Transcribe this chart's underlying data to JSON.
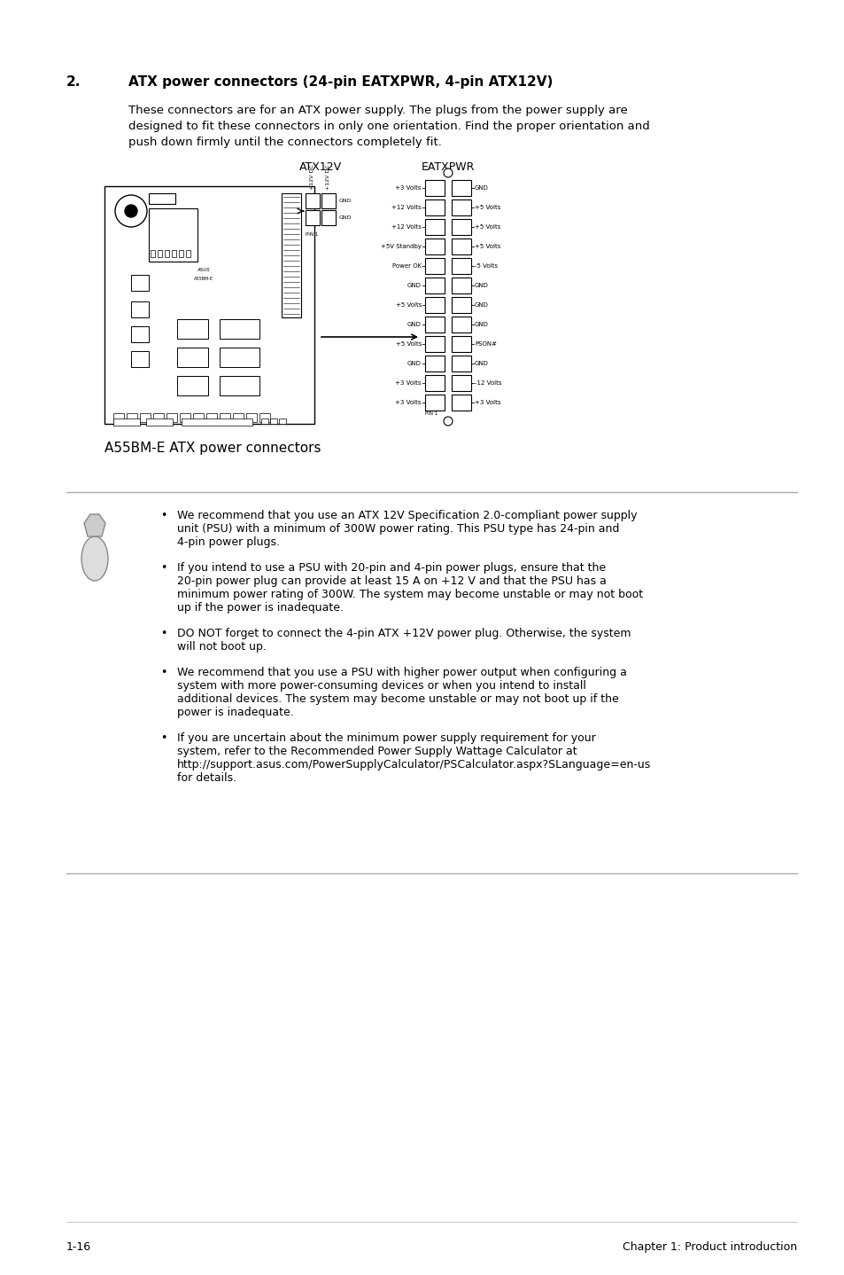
{
  "bg_color": "#ffffff",
  "heading_num": "2.",
  "heading_text": "ATX power connectors (24-pin EATXPWR, 4-pin ATX12V)",
  "body_line1": "These connectors are for an ATX power supply. The plugs from the power supply are",
  "body_line2": "designed to fit these connectors in only one orientation. Find the proper orientation and",
  "body_line3": "push down firmly until the connectors completely fit.",
  "diagram_caption": "A55BM-E ATX power connectors",
  "atx12v_label": "ATX12V",
  "eatxpwr_label": "EATXPWR",
  "eatxpwr_left_pins": [
    "+3 Volts",
    "+12 Volts",
    "+12 Volts",
    "+5V Standby",
    "Power OK",
    "GND",
    "+5 Volts",
    "GND",
    "+5 Volts",
    "GND",
    "+3 Volts",
    "+3 Volts"
  ],
  "eatxpwr_right_pins": [
    "GND",
    "+5 Volts",
    "+5 Volts",
    "+5 Volts",
    "-5 Volts",
    "GND",
    "GND",
    "GND",
    "PSON#",
    "GND",
    "-12 Volts",
    "+3 Volts"
  ],
  "note_bullets": [
    "We recommend that you use an ATX 12V Specification 2.0-compliant power supply unit (PSU) with a minimum of 300W power rating. This PSU type has 24-pin and 4-pin power plugs.",
    "If you intend to use a PSU with 20-pin and 4-pin power plugs, ensure that the 20-pin power plug can provide at least 15 A on +12 V and that the PSU has a minimum power rating of 300W. The system may become unstable or may not boot up if the power is inadequate.",
    "DO NOT forget to connect the 4-pin ATX +12V power plug. Otherwise, the system will not boot up.",
    "We recommend that you use a PSU with higher power output when configuring a system with more power-consuming devices or when you intend to install additional devices. The system may become unstable or may not boot up if the power is inadequate.",
    "If you are uncertain about the minimum power supply requirement for your system, refer to the Recommended Power Supply Wattage Calculator at http://support.asus.com/PowerSupplyCalculator/PSCalculator.aspx?SLanguage=en-us for details."
  ],
  "footer_left": "1-16",
  "footer_right": "Chapter 1: Product introduction"
}
